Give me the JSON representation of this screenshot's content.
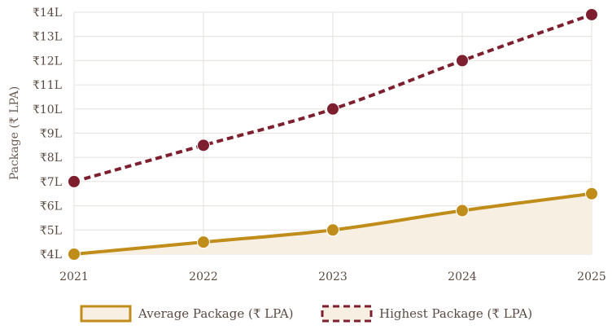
{
  "chart_data": {
    "type": "line",
    "x": [
      "2021",
      "2022",
      "2023",
      "2024",
      "2025"
    ],
    "ylabel": "Package (₹ LPA)",
    "ylim": [
      4,
      14
    ],
    "yticks": [
      4,
      5,
      6,
      7,
      8,
      9,
      10,
      11,
      12,
      13,
      14
    ],
    "ytick_labels": [
      "₹4L",
      "₹5L",
      "₹6L",
      "₹7L",
      "₹8L",
      "₹9L",
      "₹10L",
      "₹11L",
      "₹12L",
      "₹13L",
      "₹14L"
    ],
    "grid": true,
    "legend_position": "bottom",
    "series": [
      {
        "name": "Average Package (₹ LPA)",
        "values": [
          4.0,
          4.5,
          5.0,
          5.8,
          6.5
        ],
        "color": "#c08c1a",
        "fill": "#f7efe2",
        "style": "solid-area"
      },
      {
        "name": "Highest Package (₹ LPA)",
        "values": [
          7.0,
          8.5,
          10.0,
          12.0,
          13.9
        ],
        "color": "#7d1f2e",
        "fill": "#f7efe2",
        "style": "dashed"
      }
    ]
  }
}
